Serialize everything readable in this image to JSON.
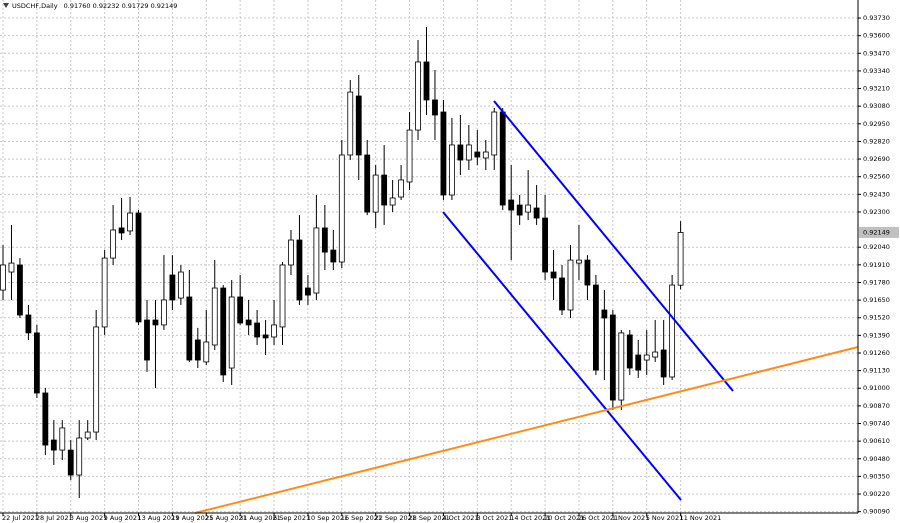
{
  "chart_data": {
    "type": "candlestick",
    "title": "USDCHF,Daily",
    "ohlc_labels": [
      "0.91760",
      "0.92232",
      "0.91729",
      "0.92149"
    ],
    "up_color": "#ffffff",
    "down_color": "#000000",
    "grid": true,
    "categories": [
      "22 Jul 2021",
      null,
      null,
      null,
      "28 Jul 2021",
      null,
      null,
      null,
      "3 Aug 2021",
      null,
      null,
      null,
      "9 Aug 2021",
      null,
      null,
      null,
      "13 Aug 2021",
      null,
      null,
      null,
      "19 Aug 2021",
      null,
      null,
      null,
      "25 Aug 2021",
      null,
      null,
      null,
      "31 Aug 2021",
      null,
      null,
      null,
      "6 Sep 2021",
      null,
      null,
      null,
      "10 Sep 2021",
      null,
      null,
      null,
      "16 Sep 2021",
      null,
      null,
      null,
      "22 Sep 2021",
      null,
      null,
      null,
      "28 Sep 2021",
      null,
      null,
      null,
      "4 Oct 2021",
      null,
      null,
      null,
      "8 Oct 2021",
      null,
      null,
      null,
      "14 Oct 2021",
      null,
      null,
      null,
      "20 Oct 2021",
      null,
      null,
      null,
      "26 Oct 2021",
      null,
      null,
      null,
      "1 Nov 2021",
      null,
      null,
      null,
      "5 Nov 2021",
      null,
      null,
      null,
      "11 Nov 2021"
    ],
    "open": [
      0.91724,
      0.91857,
      0.91909,
      0.9154,
      0.91408,
      0.90965,
      0.90618,
      0.90544,
      0.90544,
      0.9036,
      0.90633,
      0.90677,
      0.91452,
      0.9196,
      0.92182,
      0.9216,
      0.92292,
      0.91503,
      0.91503,
      0.91467,
      0.91835,
      0.91665,
      0.91673,
      0.91356,
      0.91194,
      0.91319,
      0.91739,
      0.91149,
      0.91673,
      0.91503,
      0.91481,
      0.91393,
      0.91378,
      0.91452,
      0.91909,
      0.92093,
      0.91739,
      0.91702,
      0.92182,
      0.92019,
      0.91931,
      0.9272,
      0.93155,
      0.9272,
      0.92299,
      0.92572,
      0.92351,
      0.9241,
      0.92521,
      0.92904,
      0.93406,
      0.93126,
      0.93037,
      0.92425,
      0.92794,
      0.92683,
      0.92742,
      0.92698,
      0.9272,
      0.93037,
      0.92388,
      0.92351,
      0.92299,
      0.92329,
      0.92255,
      0.91857,
      0.91813,
      0.91577,
      0.91923,
      0.91945,
      0.91761,
      0.91577,
      0.9154,
      0.90913,
      0.91393,
      0.91245,
      0.91208,
      0.9123,
      0.91282,
      0.91083,
      0.9176
    ],
    "high": [
      0.92056,
      0.92204,
      0.9196,
      0.91614,
      0.91467,
      0.91002,
      0.90765,
      0.90765,
      0.90618,
      0.90765,
      0.90765,
      0.91577,
      0.92019,
      0.92351,
      0.92403,
      0.9241,
      0.92314,
      0.91651,
      0.91651,
      0.91982,
      0.91982,
      0.91909,
      0.91872,
      0.91445,
      0.91577,
      0.91945,
      0.91761,
      0.91798,
      0.91835,
      0.91651,
      0.91577,
      0.91503,
      0.91651,
      0.91931,
      0.92167,
      0.92277,
      0.91835,
      0.92425,
      0.92351,
      0.92167,
      0.92831,
      0.93273,
      0.9331,
      0.92831,
      0.92646,
      0.92794,
      0.92536,
      0.92646,
      0.93037,
      0.93568,
      0.93664,
      0.93347,
      0.93126,
      0.92993,
      0.93015,
      0.92941,
      0.92904,
      0.92831,
      0.93067,
      0.93067,
      0.92646,
      0.92425,
      0.92609,
      0.92499,
      0.92425,
      0.92019,
      0.91909,
      0.92056,
      0.92204,
      0.91982,
      0.91835,
      0.91724,
      0.91577,
      0.9143,
      0.9143,
      0.91356,
      0.9143,
      0.91503,
      0.91503,
      0.91835,
      0.92232
    ],
    "low": [
      0.91651,
      0.91651,
      0.91518,
      0.91356,
      0.90928,
      0.90507,
      0.90434,
      0.9047,
      0.90323,
      0.9019,
      0.90618,
      0.90618,
      0.91393,
      0.91909,
      0.92093,
      0.9213,
      0.91467,
      0.9112,
      0.91002,
      0.9143,
      0.91577,
      0.91614,
      0.91194,
      0.91149,
      0.91172,
      0.91282,
      0.91046,
      0.91024,
      0.91467,
      0.91393,
      0.91319,
      0.91245,
      0.91319,
      0.91319,
      0.91835,
      0.91614,
      0.91614,
      0.91651,
      0.91872,
      0.91872,
      0.91887,
      0.92683,
      0.92536,
      0.92277,
      0.92182,
      0.92204,
      0.92299,
      0.92388,
      0.92462,
      0.92831,
      0.93015,
      0.92831,
      0.92388,
      0.92388,
      0.92572,
      0.92609,
      0.92646,
      0.92609,
      0.92609,
      0.92314,
      0.91945,
      0.92204,
      0.9224,
      0.92204,
      0.91798,
      0.91651,
      0.9154,
      0.91518,
      0.91798,
      0.91651,
      0.91098,
      0.91061,
      0.9084,
      0.9084,
      0.91098,
      0.91076,
      0.91098,
      0.91194,
      0.91024,
      0.91061,
      0.91729
    ],
    "close": [
      0.91909,
      0.91923,
      0.9154,
      0.91408,
      0.90965,
      0.90581,
      0.90544,
      0.90707,
      0.9036,
      0.90633,
      0.90677,
      0.91452,
      0.9196,
      0.92167,
      0.92145,
      0.92292,
      0.91489,
      0.91208,
      0.91467,
      0.91651,
      0.91651,
      0.91857,
      0.91208,
      0.91208,
      0.91341,
      0.91739,
      0.91098,
      0.91673,
      0.91481,
      0.91467,
      0.91378,
      0.91371,
      0.91467,
      0.91909,
      0.92093,
      0.91651,
      0.91687,
      0.92182,
      0.92004,
      0.91931,
      0.9272,
      0.93184,
      0.9272,
      0.92299,
      0.92572,
      0.92351,
      0.92403,
      0.92536,
      0.92904,
      0.93406,
      0.93126,
      0.93015,
      0.92425,
      0.92794,
      0.92683,
      0.92794,
      0.92705,
      0.92742,
      0.93037,
      0.92351,
      0.92314,
      0.92277,
      0.92351,
      0.92255,
      0.91857,
      0.91813,
      0.91577,
      0.91945,
      0.91945,
      0.91761,
      0.91134,
      0.91518,
      0.90913,
      0.91408,
      0.91149,
      0.91134,
      0.91245,
      0.91267,
      0.91083,
      0.91761,
      0.92149
    ],
    "ylim": [
      0.9008,
      0.93863
    ],
    "yticks": [
      {
        "value": 0.9373,
        "label": "0.93730"
      },
      {
        "value": 0.936,
        "label": "0.93600"
      },
      {
        "value": 0.9347,
        "label": "0.93470"
      },
      {
        "value": 0.9334,
        "label": "0.93340"
      },
      {
        "value": 0.9321,
        "label": "0.93210"
      },
      {
        "value": 0.9308,
        "label": "0.93080"
      },
      {
        "value": 0.9295,
        "label": "0.92950"
      },
      {
        "value": 0.9282,
        "label": "0.92820"
      },
      {
        "value": 0.9269,
        "label": "0.92690"
      },
      {
        "value": 0.9256,
        "label": "0.92560"
      },
      {
        "value": 0.9243,
        "label": "0.92430"
      },
      {
        "value": 0.923,
        "label": "0.92300"
      },
      {
        "value": 0.9204,
        "label": "0.92040"
      },
      {
        "value": 0.9191,
        "label": "0.91910"
      },
      {
        "value": 0.9178,
        "label": "0.91780"
      },
      {
        "value": 0.9165,
        "label": "0.91650"
      },
      {
        "value": 0.9152,
        "label": "0.91520"
      },
      {
        "value": 0.9139,
        "label": "0.91390"
      },
      {
        "value": 0.9126,
        "label": "0.91260"
      },
      {
        "value": 0.9113,
        "label": "0.91130"
      },
      {
        "value": 0.91,
        "label": "0.91000"
      },
      {
        "value": 0.9087,
        "label": "0.90870"
      },
      {
        "value": 0.9074,
        "label": "0.90740"
      },
      {
        "value": 0.9061,
        "label": "0.90610"
      },
      {
        "value": 0.9048,
        "label": "0.90480"
      },
      {
        "value": 0.9035,
        "label": "0.90350"
      },
      {
        "value": 0.9022,
        "label": "0.90220"
      },
      {
        "value": 0.9009,
        "label": "0.90090"
      }
    ]
  }
}
